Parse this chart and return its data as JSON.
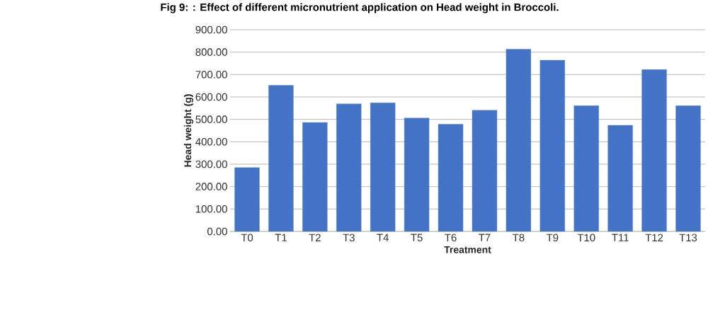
{
  "chart_data": {
    "type": "bar",
    "title": "Fig 9: : Effect of different micronutrient application on Head weight in Broccoli.",
    "xlabel": "Treatment",
    "ylabel": "Head weight (g)",
    "categories": [
      "T0",
      "T1",
      "T2",
      "T3",
      "T4",
      "T5",
      "T6",
      "T7",
      "T8",
      "T9",
      "T10",
      "T11",
      "T12",
      "T13"
    ],
    "values": [
      285,
      652,
      486,
      569,
      574,
      506,
      478,
      541,
      813,
      764,
      561,
      474,
      722,
      561
    ],
    "color": "#4472c4",
    "ylim": [
      0,
      900
    ],
    "yticks": [
      {
        "value": 0,
        "label": "0.00"
      },
      {
        "value": 100,
        "label": "100.00"
      },
      {
        "value": 200,
        "label": "200.00"
      },
      {
        "value": 300,
        "label": "300.00"
      },
      {
        "value": 400,
        "label": "400.00"
      },
      {
        "value": 500,
        "label": "500.00"
      },
      {
        "value": 600,
        "label": "600.00"
      },
      {
        "value": 700,
        "label": "700.00"
      },
      {
        "value": 800,
        "label": "800.00"
      },
      {
        "value": 900,
        "label": "900.00"
      }
    ],
    "grid": "y"
  }
}
